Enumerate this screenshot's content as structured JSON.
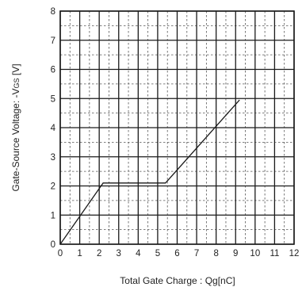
{
  "chart_data": {
    "type": "line",
    "title": "",
    "xlabel": "Total Gate Charge : Qg[nC]",
    "ylabel": {
      "main": "Gate-Source Voltage: -V",
      "subscript": "GS",
      "unit": " [V]"
    },
    "xlim": [
      0,
      12
    ],
    "ylim": [
      0,
      8
    ],
    "xticks": [
      0,
      1,
      2,
      3,
      4,
      5,
      6,
      7,
      8,
      9,
      10,
      11,
      12
    ],
    "yticks": [
      0,
      1,
      2,
      3,
      4,
      5,
      6,
      7,
      8
    ],
    "x_tick_labels": [
      "0",
      "1",
      "2",
      "3",
      "4",
      "5",
      "6",
      "7",
      "8",
      "9",
      "10",
      "11",
      "12"
    ],
    "y_tick_labels": [
      "0",
      "1",
      "2",
      "3",
      "4",
      "5",
      "6",
      "7",
      "8"
    ],
    "grid": {
      "major": true,
      "minor_dashed": true
    },
    "colors": {
      "grid": "#1a1a1a",
      "minor_grid": "#555555",
      "line": "#1a1a1a",
      "text": "#222222"
    },
    "series": [
      {
        "x": [
          0,
          2.2,
          5.4,
          9.2
        ],
        "y": [
          0,
          2.1,
          2.1,
          4.95
        ]
      }
    ]
  }
}
